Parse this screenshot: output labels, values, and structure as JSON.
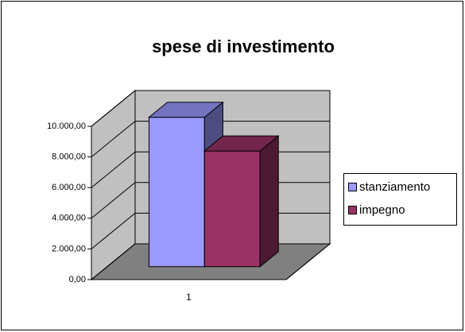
{
  "chart_data": {
    "type": "bar3d",
    "title": "spese di investimento",
    "categories": [
      "1"
    ],
    "series": [
      {
        "name": "stanziamento",
        "color": "#9999ff",
        "values": [
          9750
        ]
      },
      {
        "name": "impegno",
        "color": "#993366",
        "values": [
          7550
        ]
      }
    ],
    "ylim": [
      0,
      10000
    ],
    "yticks": [
      {
        "value": 0,
        "label": "0,00"
      },
      {
        "value": 2000,
        "label": "2.000,00"
      },
      {
        "value": 4000,
        "label": "4.000,00"
      },
      {
        "value": 6000,
        "label": "6.000,00"
      },
      {
        "value": 8000,
        "label": "8.000,00"
      },
      {
        "value": 10000,
        "label": "10.000,00"
      }
    ],
    "grid": true,
    "legend": "right"
  }
}
